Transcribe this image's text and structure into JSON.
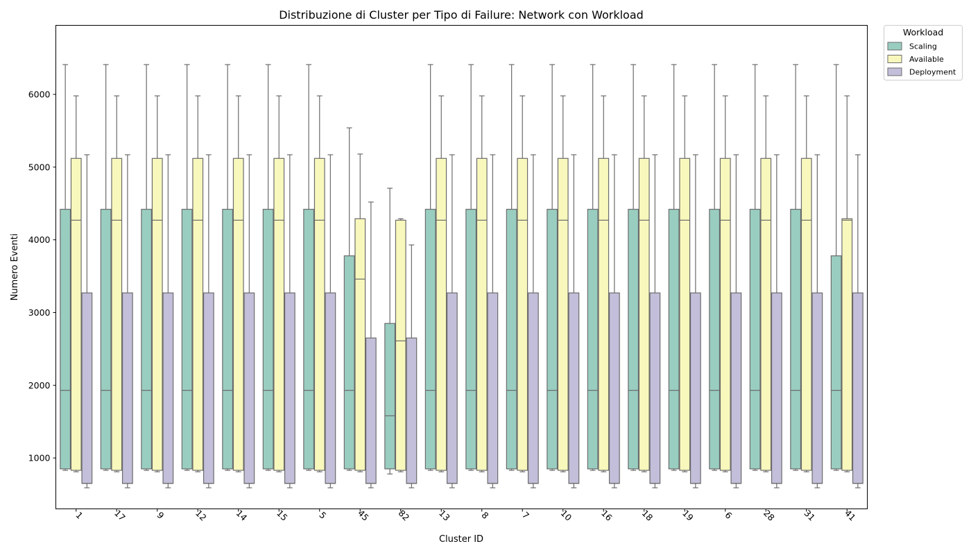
{
  "chart_data": {
    "type": "box",
    "title": "Distribuzione di Cluster per Tipo di Failure: Network con Workload",
    "xlabel": "Cluster ID",
    "ylabel": "Numero Eventi",
    "ylim": [
      300,
      6950
    ],
    "yticks": [
      1000,
      2000,
      3000,
      4000,
      5000,
      6000
    ],
    "categories": [
      "1",
      "17",
      "9",
      "12",
      "14",
      "15",
      "5",
      "45",
      "82",
      "13",
      "8",
      "7",
      "10",
      "16",
      "18",
      "19",
      "6",
      "28",
      "31",
      "41"
    ],
    "legend": {
      "title": "Workload",
      "position": "outside-top-right"
    },
    "series": [
      {
        "name": "Scaling",
        "color": "#99cdc0",
        "boxes": [
          {
            "whislo": 830,
            "q1": 850,
            "med": 1930,
            "q3": 4420,
            "whishi": 6410
          },
          {
            "whislo": 830,
            "q1": 850,
            "med": 1930,
            "q3": 4420,
            "whishi": 6410
          },
          {
            "whislo": 830,
            "q1": 850,
            "med": 1930,
            "q3": 4420,
            "whishi": 6410
          },
          {
            "whislo": 830,
            "q1": 850,
            "med": 1930,
            "q3": 4420,
            "whishi": 6410
          },
          {
            "whislo": 830,
            "q1": 850,
            "med": 1930,
            "q3": 4420,
            "whishi": 6410
          },
          {
            "whislo": 830,
            "q1": 850,
            "med": 1930,
            "q3": 4420,
            "whishi": 6410
          },
          {
            "whislo": 830,
            "q1": 850,
            "med": 1930,
            "q3": 4420,
            "whishi": 6410
          },
          {
            "whislo": 830,
            "q1": 850,
            "med": 1930,
            "q3": 3780,
            "whishi": 5540
          },
          {
            "whislo": 780,
            "q1": 850,
            "med": 1580,
            "q3": 2850,
            "whishi": 4710
          },
          {
            "whislo": 830,
            "q1": 850,
            "med": 1930,
            "q3": 4420,
            "whishi": 6410
          },
          {
            "whislo": 830,
            "q1": 850,
            "med": 1930,
            "q3": 4420,
            "whishi": 6410
          },
          {
            "whislo": 830,
            "q1": 850,
            "med": 1930,
            "q3": 4420,
            "whishi": 6410
          },
          {
            "whislo": 830,
            "q1": 850,
            "med": 1930,
            "q3": 4420,
            "whishi": 6410
          },
          {
            "whislo": 830,
            "q1": 850,
            "med": 1930,
            "q3": 4420,
            "whishi": 6410
          },
          {
            "whislo": 830,
            "q1": 850,
            "med": 1930,
            "q3": 4420,
            "whishi": 6410
          },
          {
            "whislo": 830,
            "q1": 850,
            "med": 1930,
            "q3": 4420,
            "whishi": 6410
          },
          {
            "whislo": 830,
            "q1": 850,
            "med": 1930,
            "q3": 4420,
            "whishi": 6410
          },
          {
            "whislo": 830,
            "q1": 850,
            "med": 1930,
            "q3": 4420,
            "whishi": 6410
          },
          {
            "whislo": 830,
            "q1": 850,
            "med": 1930,
            "q3": 4420,
            "whishi": 6410
          },
          {
            "whislo": 830,
            "q1": 850,
            "med": 1930,
            "q3": 3780,
            "whishi": 6410
          }
        ]
      },
      {
        "name": "Available",
        "color": "#f8f8bd",
        "boxes": [
          {
            "whislo": 810,
            "q1": 830,
            "med": 4270,
            "q3": 5120,
            "whishi": 5980
          },
          {
            "whislo": 810,
            "q1": 830,
            "med": 4270,
            "q3": 5120,
            "whishi": 5980
          },
          {
            "whislo": 810,
            "q1": 830,
            "med": 4270,
            "q3": 5120,
            "whishi": 5980
          },
          {
            "whislo": 810,
            "q1": 830,
            "med": 4270,
            "q3": 5120,
            "whishi": 5980
          },
          {
            "whislo": 810,
            "q1": 830,
            "med": 4270,
            "q3": 5120,
            "whishi": 5980
          },
          {
            "whislo": 810,
            "q1": 830,
            "med": 4270,
            "q3": 5120,
            "whishi": 5980
          },
          {
            "whislo": 810,
            "q1": 830,
            "med": 4270,
            "q3": 5120,
            "whishi": 5980
          },
          {
            "whislo": 810,
            "q1": 830,
            "med": 3460,
            "q3": 4290,
            "whishi": 5180
          },
          {
            "whislo": 810,
            "q1": 830,
            "med": 2610,
            "q3": 4270,
            "whishi": 4290
          },
          {
            "whislo": 810,
            "q1": 830,
            "med": 4270,
            "q3": 5120,
            "whishi": 5980
          },
          {
            "whislo": 810,
            "q1": 830,
            "med": 4270,
            "q3": 5120,
            "whishi": 5980
          },
          {
            "whislo": 810,
            "q1": 830,
            "med": 4270,
            "q3": 5120,
            "whishi": 5980
          },
          {
            "whislo": 810,
            "q1": 830,
            "med": 4270,
            "q3": 5120,
            "whishi": 5980
          },
          {
            "whislo": 810,
            "q1": 830,
            "med": 4270,
            "q3": 5120,
            "whishi": 5980
          },
          {
            "whislo": 810,
            "q1": 830,
            "med": 4270,
            "q3": 5120,
            "whishi": 5980
          },
          {
            "whislo": 810,
            "q1": 830,
            "med": 4270,
            "q3": 5120,
            "whishi": 5980
          },
          {
            "whislo": 810,
            "q1": 830,
            "med": 4270,
            "q3": 5120,
            "whishi": 5980
          },
          {
            "whislo": 810,
            "q1": 830,
            "med": 4270,
            "q3": 5120,
            "whishi": 5980
          },
          {
            "whislo": 810,
            "q1": 830,
            "med": 4270,
            "q3": 5120,
            "whishi": 5980
          },
          {
            "whislo": 810,
            "q1": 830,
            "med": 4270,
            "q3": 4290,
            "whishi": 5980
          }
        ]
      },
      {
        "name": "Deployment",
        "color": "#c3bed9",
        "boxes": [
          {
            "whislo": 590,
            "q1": 650,
            "med": 650,
            "q3": 3270,
            "whishi": 5170
          },
          {
            "whislo": 590,
            "q1": 650,
            "med": 650,
            "q3": 3270,
            "whishi": 5170
          },
          {
            "whislo": 590,
            "q1": 650,
            "med": 650,
            "q3": 3270,
            "whishi": 5170
          },
          {
            "whislo": 590,
            "q1": 650,
            "med": 650,
            "q3": 3270,
            "whishi": 5170
          },
          {
            "whislo": 590,
            "q1": 650,
            "med": 650,
            "q3": 3270,
            "whishi": 5170
          },
          {
            "whislo": 590,
            "q1": 650,
            "med": 650,
            "q3": 3270,
            "whishi": 5170
          },
          {
            "whislo": 590,
            "q1": 650,
            "med": 650,
            "q3": 3270,
            "whishi": 5170
          },
          {
            "whislo": 590,
            "q1": 650,
            "med": 650,
            "q3": 2650,
            "whishi": 4520
          },
          {
            "whislo": 590,
            "q1": 650,
            "med": 650,
            "q3": 2650,
            "whishi": 3930
          },
          {
            "whislo": 590,
            "q1": 650,
            "med": 650,
            "q3": 3270,
            "whishi": 5170
          },
          {
            "whislo": 590,
            "q1": 650,
            "med": 650,
            "q3": 3270,
            "whishi": 5170
          },
          {
            "whislo": 590,
            "q1": 650,
            "med": 650,
            "q3": 3270,
            "whishi": 5170
          },
          {
            "whislo": 590,
            "q1": 650,
            "med": 650,
            "q3": 3270,
            "whishi": 5170
          },
          {
            "whislo": 590,
            "q1": 650,
            "med": 650,
            "q3": 3270,
            "whishi": 5170
          },
          {
            "whislo": 590,
            "q1": 650,
            "med": 650,
            "q3": 3270,
            "whishi": 5170
          },
          {
            "whislo": 590,
            "q1": 650,
            "med": 650,
            "q3": 3270,
            "whishi": 5170
          },
          {
            "whislo": 590,
            "q1": 650,
            "med": 650,
            "q3": 3270,
            "whishi": 5170
          },
          {
            "whislo": 590,
            "q1": 650,
            "med": 650,
            "q3": 3270,
            "whishi": 5170
          },
          {
            "whislo": 590,
            "q1": 650,
            "med": 650,
            "q3": 3270,
            "whishi": 5170
          },
          {
            "whislo": 590,
            "q1": 650,
            "med": 650,
            "q3": 3270,
            "whishi": 5170
          }
        ]
      }
    ]
  }
}
